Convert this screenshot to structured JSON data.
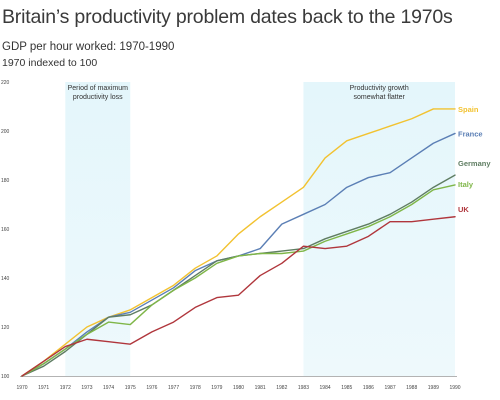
{
  "chart_data": {
    "type": "line",
    "title": "Britain’s productivity problem dates back to the 1970s",
    "subtitle": "GDP per hour worked: 1970-1990",
    "subtitle2": "1970 indexed to 100",
    "xlabel": "",
    "ylabel": "",
    "x": [
      1970,
      1971,
      1972,
      1973,
      1974,
      1975,
      1976,
      1977,
      1978,
      1979,
      1980,
      1981,
      1982,
      1983,
      1984,
      1985,
      1986,
      1987,
      1988,
      1989,
      1990
    ],
    "x_tick_labels": [
      "1970",
      "1971",
      "1972",
      "1973",
      "1974",
      "1975",
      "1976",
      "1977",
      "1978",
      "1979",
      "1980",
      "1981",
      "1982",
      "1983",
      "1984",
      "1985",
      "1986",
      "1987",
      "1988",
      "1989",
      "1990"
    ],
    "ylim": [
      100,
      220
    ],
    "y_ticks": [
      100,
      120,
      140,
      160,
      180,
      200,
      220
    ],
    "y_tick_labels": [
      "100",
      "120",
      "140",
      "160",
      "180",
      "200",
      "220"
    ],
    "grid": false,
    "bands": [
      {
        "from": 1972,
        "to": 1975,
        "label_lines": [
          "Period of maximum",
          "productivity loss"
        ]
      },
      {
        "from": 1983,
        "to": 1990,
        "label_lines": [
          "Productivity growth",
          "somewhat flatter"
        ]
      }
    ],
    "series": [
      {
        "name": "Spain",
        "color": "#f2c230",
        "values": [
          100,
          106,
          113,
          120,
          124,
          127,
          132,
          137,
          144,
          149,
          158,
          165,
          171,
          177,
          189,
          196,
          199,
          202,
          205,
          209,
          209
        ]
      },
      {
        "name": "France",
        "color": "#5b7fb5",
        "values": [
          100,
          105,
          111,
          118,
          124,
          126,
          131,
          136,
          143,
          147,
          149,
          152,
          162,
          166,
          170,
          177,
          181,
          183,
          189,
          195,
          199
        ]
      },
      {
        "name": "Germany",
        "color": "#5f7d62",
        "values": [
          100,
          104,
          110,
          117,
          124,
          125,
          129,
          135,
          141,
          147,
          149,
          150,
          151,
          152,
          156,
          159,
          162,
          166,
          171,
          177,
          182
        ]
      },
      {
        "name": "Italy",
        "color": "#7fb648",
        "values": [
          100,
          105,
          111,
          117,
          122,
          121,
          129,
          135,
          140,
          146,
          149,
          150,
          150,
          151,
          155,
          158,
          161,
          165,
          170,
          176,
          178
        ]
      },
      {
        "name": "UK",
        "color": "#b0363c",
        "values": [
          100,
          106,
          112,
          115,
          114,
          113,
          118,
          122,
          128,
          132,
          133,
          141,
          146,
          153,
          152,
          153,
          157,
          163,
          163,
          164,
          165
        ]
      }
    ]
  }
}
